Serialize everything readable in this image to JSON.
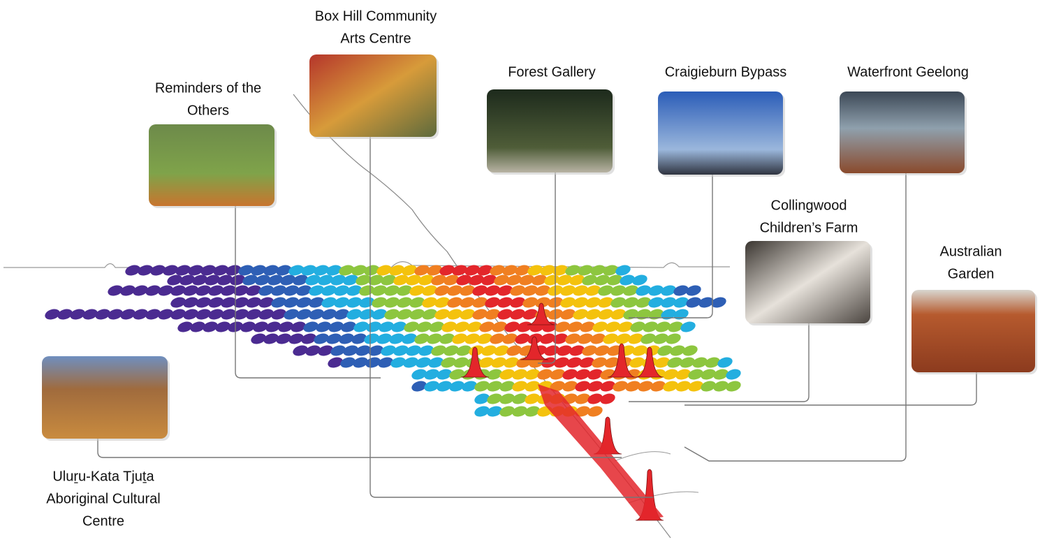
{
  "nodes": [
    {
      "label": [
        "Reminders of the",
        "Others"
      ]
    },
    {
      "label": [
        "Box Hill Community",
        "Arts Centre"
      ]
    },
    {
      "label": [
        "Forest Gallery"
      ]
    },
    {
      "label": [
        "Craigieburn Bypass"
      ]
    },
    {
      "label": [
        "Waterfront Geelong"
      ]
    },
    {
      "label": [
        "Collingwood",
        "Children’s Farm"
      ]
    },
    {
      "label": [
        "Australian",
        "Garden"
      ]
    },
    {
      "label": [
        "Uluṟu-Kata Tjuṯa",
        "Aboriginal Cultural",
        "Centre"
      ]
    }
  ]
}
